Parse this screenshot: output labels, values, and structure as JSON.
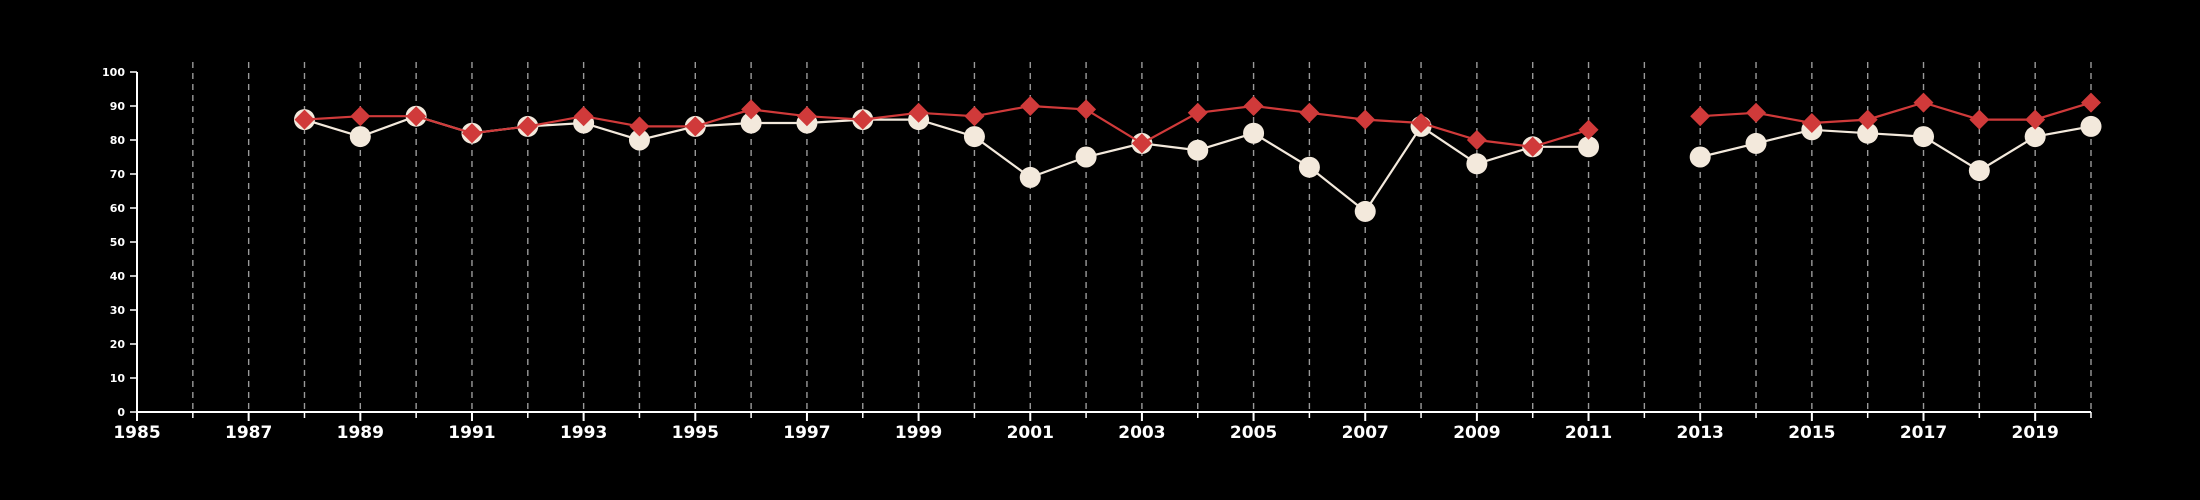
{
  "chart_data": {
    "type": "line",
    "title": "",
    "xlabel": "",
    "ylabel": "",
    "xlim": [
      1985,
      2020
    ],
    "ylim": [
      0,
      100
    ],
    "x_ticks": [
      1985,
      1987,
      1989,
      1991,
      1993,
      1995,
      1997,
      1999,
      2001,
      2003,
      2005,
      2007,
      2009,
      2011,
      2013,
      2015,
      2017,
      2019
    ],
    "x_tick_labels": [
      "1985",
      "1987",
      "1989",
      "1991",
      "1993",
      "1995",
      "1997",
      "1999",
      "2001",
      "2003",
      "2005",
      "2007",
      "2009",
      "2011",
      "2013",
      "2015",
      "2017",
      "2019"
    ],
    "y_ticks": [
      0,
      10,
      20,
      30,
      40,
      50,
      60,
      70,
      80,
      90,
      100
    ],
    "y_tick_labels": [
      "0",
      "10",
      "20",
      "30",
      "40",
      "50",
      "60",
      "70",
      "80",
      "90",
      "100"
    ],
    "grid": "vertical dashed lines at every year",
    "legend": "none",
    "background": "#000000",
    "x": [
      1988,
      1989,
      1990,
      1991,
      1992,
      1993,
      1994,
      1995,
      1996,
      1997,
      1998,
      1999,
      2000,
      2001,
      2002,
      2003,
      2004,
      2005,
      2006,
      2007,
      2008,
      2009,
      2010,
      2011,
      2012,
      2013,
      2014,
      2015,
      2016,
      2017,
      2018,
      2019,
      2020
    ],
    "series": [
      {
        "marker": "diamond",
        "color": "#d03a3a",
        "values": [
          86,
          87,
          87,
          82,
          84,
          87,
          84,
          84,
          89,
          87,
          86,
          88,
          87,
          90,
          89,
          79,
          88,
          90,
          88,
          86,
          85,
          80,
          78,
          83,
          null,
          87,
          88,
          85,
          86,
          91,
          86,
          86,
          91
        ]
      },
      {
        "marker": "circle",
        "color": "#f3e9dc",
        "values": [
          86,
          81,
          87,
          82,
          84,
          85,
          80,
          84,
          85,
          85,
          86,
          86,
          81,
          69,
          75,
          79,
          77,
          82,
          72,
          59,
          84,
          73,
          78,
          78,
          null,
          75,
          79,
          83,
          82,
          81,
          71,
          81,
          84
        ]
      }
    ]
  }
}
